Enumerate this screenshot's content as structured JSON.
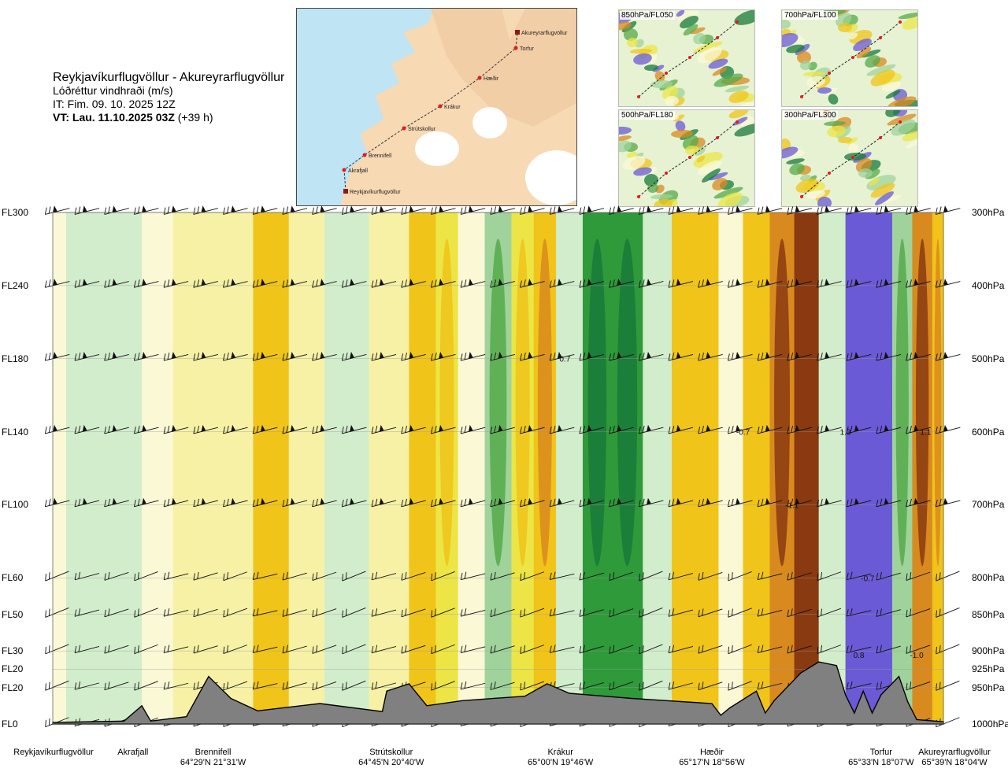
{
  "header": {
    "route": "Reykjavíkurflugvöllur - Akureyrarflugvöllur",
    "parameter": "Lóðréttur vindhraði (m/s)",
    "issue_time": "IT: Fim. 09. 10. 2025 12Z",
    "valid_prefix": "VT: Lau. 11.10.2025 03Z",
    "valid_suffix": "(+39 h)"
  },
  "route_map": {
    "stations": [
      "Reykjavíkurflugvöllur",
      "Akrafjall",
      "Brennifell",
      "Strútskollur",
      "Krákur",
      "Hæðir",
      "Torfur",
      "Akureyrarflugvöllur"
    ]
  },
  "thumbnails": [
    {
      "label": "850hPa/FL050"
    },
    {
      "label": "700hPa/FL100"
    },
    {
      "label": "500hPa/FL180"
    },
    {
      "label": "300hPa/FL300"
    }
  ],
  "chart_data": {
    "type": "heatmap",
    "title": "",
    "variable": "Lóðréttur vindhraði (m/s)",
    "x_stations": [
      {
        "name": "Reykjavíkurflugvöllur",
        "coord": "",
        "dist": 0.0
      },
      {
        "name": "Akrafjall",
        "coord": "",
        "dist": 0.09
      },
      {
        "name": "Brennifell",
        "coord": "64°29'N 21°31'W",
        "dist": 0.18
      },
      {
        "name": "Strútskollur",
        "coord": "64°45'N 20°40'W",
        "dist": 0.38
      },
      {
        "name": "Krákur",
        "coord": "65°00'N 19°46'W",
        "dist": 0.57
      },
      {
        "name": "Hæðir",
        "coord": "65°17'N 18°56'W",
        "dist": 0.74
      },
      {
        "name": "Torfur",
        "coord": "65°33'N 18°07'W",
        "dist": 0.93
      },
      {
        "name": "Akureyrarflugvöllur",
        "coord": "65°39'N 18°04'W",
        "dist": 1.0
      }
    ],
    "levels": [
      {
        "fl": "FL300",
        "hpa": "300hPa",
        "p": 300
      },
      {
        "fl": "FL240",
        "hpa": "400hPa",
        "p": 400
      },
      {
        "fl": "FL180",
        "hpa": "500hPa",
        "p": 500
      },
      {
        "fl": "FL140",
        "hpa": "600hPa",
        "p": 600
      },
      {
        "fl": "FL100",
        "hpa": "700hPa",
        "p": 700
      },
      {
        "fl": "FL60",
        "hpa": "800hPa",
        "p": 800
      },
      {
        "fl": "FL50",
        "hpa": "850hPa",
        "p": 850
      },
      {
        "fl": "FL30",
        "hpa": "900hPa",
        "p": 900
      },
      {
        "fl": "FL20",
        "hpa": "925hPa",
        "p": 925
      },
      {
        "fl": "FL20",
        "hpa": "950hPa",
        "p": 950
      },
      {
        "fl": "FL0",
        "hpa": "1000hPa",
        "p": 1000
      }
    ],
    "ylim_hpa": [
      300,
      1000
    ],
    "columns": [
      {
        "dist": 0.0,
        "w": 0.05
      },
      {
        "dist": 0.03,
        "w": 0.1
      },
      {
        "dist": 0.08,
        "w": 0.1
      },
      {
        "dist": 0.12,
        "w": 0.05
      },
      {
        "dist": 0.15,
        "w": -0.05
      },
      {
        "dist": 0.2,
        "w": -0.1
      },
      {
        "dist": 0.25,
        "w": -0.3
      },
      {
        "dist": 0.28,
        "w": -0.1
      },
      {
        "dist": 0.33,
        "w": 0.1
      },
      {
        "dist": 0.38,
        "w": -0.05
      },
      {
        "dist": 0.42,
        "w": -0.3
      },
      {
        "dist": 0.44,
        "w": -0.2
      },
      {
        "dist": 0.47,
        "w": 0.05
      },
      {
        "dist": 0.5,
        "w": 0.2
      },
      {
        "dist": 0.53,
        "w": -0.2
      },
      {
        "dist": 0.55,
        "w": -0.5
      },
      {
        "dist": 0.58,
        "w": 0.1
      },
      {
        "dist": 0.61,
        "w": 0.5
      },
      {
        "dist": 0.645,
        "w": 0.6
      },
      {
        "dist": 0.68,
        "w": 0.1
      },
      {
        "dist": 0.71,
        "w": -0.3
      },
      {
        "dist": 0.735,
        "w": -0.3
      },
      {
        "dist": 0.76,
        "w": 0.05
      },
      {
        "dist": 0.79,
        "w": -0.3
      },
      {
        "dist": 0.82,
        "w": -0.7
      },
      {
        "dist": 0.845,
        "w": -0.9
      },
      {
        "dist": 0.875,
        "w": 0.1
      },
      {
        "dist": 0.905,
        "w": 1.0
      },
      {
        "dist": 0.93,
        "w": 1.3
      },
      {
        "dist": 0.955,
        "w": 0.2
      },
      {
        "dist": 0.975,
        "w": -0.8
      },
      {
        "dist": 1.0,
        "w": -0.5
      }
    ],
    "terrain_hpa": [
      {
        "dist": 0.0,
        "p": 998
      },
      {
        "dist": 0.08,
        "p": 996
      },
      {
        "dist": 0.1,
        "p": 975
      },
      {
        "dist": 0.11,
        "p": 996
      },
      {
        "dist": 0.15,
        "p": 990
      },
      {
        "dist": 0.175,
        "p": 935
      },
      {
        "dist": 0.2,
        "p": 965
      },
      {
        "dist": 0.23,
        "p": 982
      },
      {
        "dist": 0.3,
        "p": 972
      },
      {
        "dist": 0.37,
        "p": 983
      },
      {
        "dist": 0.375,
        "p": 955
      },
      {
        "dist": 0.4,
        "p": 945
      },
      {
        "dist": 0.42,
        "p": 975
      },
      {
        "dist": 0.46,
        "p": 968
      },
      {
        "dist": 0.53,
        "p": 962
      },
      {
        "dist": 0.555,
        "p": 945
      },
      {
        "dist": 0.58,
        "p": 958
      },
      {
        "dist": 0.65,
        "p": 965
      },
      {
        "dist": 0.74,
        "p": 972
      },
      {
        "dist": 0.75,
        "p": 988
      },
      {
        "dist": 0.76,
        "p": 978
      },
      {
        "dist": 0.79,
        "p": 955
      },
      {
        "dist": 0.8,
        "p": 985
      },
      {
        "dist": 0.81,
        "p": 968
      },
      {
        "dist": 0.84,
        "p": 930
      },
      {
        "dist": 0.86,
        "p": 915
      },
      {
        "dist": 0.88,
        "p": 920
      },
      {
        "dist": 0.89,
        "p": 960
      },
      {
        "dist": 0.9,
        "p": 985
      },
      {
        "dist": 0.91,
        "p": 955
      },
      {
        "dist": 0.92,
        "p": 985
      },
      {
        "dist": 0.93,
        "p": 960
      },
      {
        "dist": 0.95,
        "p": 935
      },
      {
        "dist": 0.96,
        "p": 970
      },
      {
        "dist": 0.97,
        "p": 994
      },
      {
        "dist": 1.0,
        "p": 997
      }
    ],
    "value_labels": [
      {
        "text": "0.7",
        "dist": 0.575,
        "p": 500
      },
      {
        "text": "-0.7",
        "dist": 0.775,
        "p": 600
      },
      {
        "text": "-1.1",
        "dist": 0.83,
        "p": 700
      },
      {
        "text": "1.3",
        "dist": 0.89,
        "p": 600
      },
      {
        "text": "-0.7",
        "dist": 0.915,
        "p": 800
      },
      {
        "text": "0.8",
        "dist": 0.905,
        "p": 905
      },
      {
        "text": "1.1",
        "dist": 0.98,
        "p": 600
      },
      {
        "text": "-1.0",
        "dist": 0.97,
        "p": 905
      }
    ],
    "color_scale": [
      {
        "min": -99,
        "max": -0.8,
        "color": "#8a3a10"
      },
      {
        "min": -0.8,
        "max": -0.5,
        "color": "#d98a1f"
      },
      {
        "min": -0.5,
        "max": -0.25,
        "color": "#f0c419"
      },
      {
        "min": -0.25,
        "max": -0.1,
        "color": "#ece545"
      },
      {
        "min": -0.1,
        "max": 0.0,
        "color": "#f6f1a5"
      },
      {
        "min": 0.0,
        "max": 0.08,
        "color": "#fbf8d6"
      },
      {
        "min": 0.08,
        "max": 0.2,
        "color": "#d2edcc"
      },
      {
        "min": 0.2,
        "max": 0.35,
        "color": "#9fd39b"
      },
      {
        "min": 0.35,
        "max": 0.5,
        "color": "#55aa4a"
      },
      {
        "min": 0.5,
        "max": 0.65,
        "color": "#2e9a3a"
      },
      {
        "min": 0.65,
        "max": 0.8,
        "color": "#177a3a"
      },
      {
        "min": 0.8,
        "max": 1.0,
        "color": "#5087b9"
      },
      {
        "min": 1.0,
        "max": 99,
        "color": "#6a5ad6"
      }
    ],
    "colors": {
      "terrain": "#808080",
      "sea": "#bfe4f4",
      "land": "#f7d9b4",
      "route": "#333333",
      "station": "#e41a1c"
    }
  }
}
